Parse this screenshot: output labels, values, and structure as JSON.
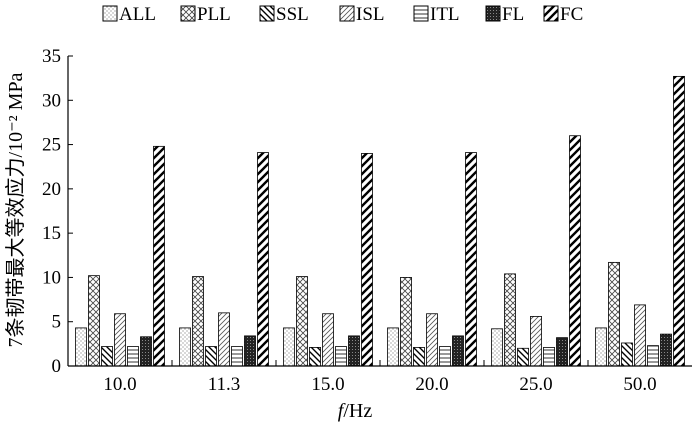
{
  "chart_data": {
    "type": "bar",
    "title": "",
    "xlabel": {
      "italic": "f",
      "rest": "/Hz"
    },
    "ylabel": "7条韧带最大等效应力/10⁻² MPa",
    "ylim": [
      0,
      35
    ],
    "yticks": [
      0,
      5,
      10,
      15,
      20,
      25,
      30,
      35
    ],
    "grid": false,
    "legend_position": "top",
    "categories": [
      "10.0",
      "11.3",
      "15.0",
      "20.0",
      "25.0",
      "50.0"
    ],
    "series": [
      {
        "name": "ALL",
        "pattern": "dots",
        "values": [
          4.3,
          4.3,
          4.3,
          4.3,
          4.2,
          4.3
        ]
      },
      {
        "name": "PLL",
        "pattern": "crosshatch",
        "values": [
          10.2,
          10.1,
          10.1,
          10.0,
          10.4,
          11.7
        ]
      },
      {
        "name": "SSL",
        "pattern": "backslash",
        "values": [
          2.2,
          2.2,
          2.1,
          2.1,
          2.0,
          2.6
        ]
      },
      {
        "name": "ISL",
        "pattern": "slash-thin",
        "values": [
          5.9,
          6.0,
          5.9,
          5.9,
          5.6,
          6.9
        ]
      },
      {
        "name": "ITL",
        "pattern": "horizontal",
        "values": [
          2.2,
          2.2,
          2.2,
          2.2,
          2.1,
          2.3
        ]
      },
      {
        "name": "FL",
        "pattern": "dense",
        "values": [
          3.3,
          3.4,
          3.4,
          3.4,
          3.2,
          3.6
        ]
      },
      {
        "name": "FC",
        "pattern": "slash-bold",
        "values": [
          24.8,
          24.1,
          24.0,
          24.1,
          26.0,
          32.7
        ]
      }
    ]
  }
}
